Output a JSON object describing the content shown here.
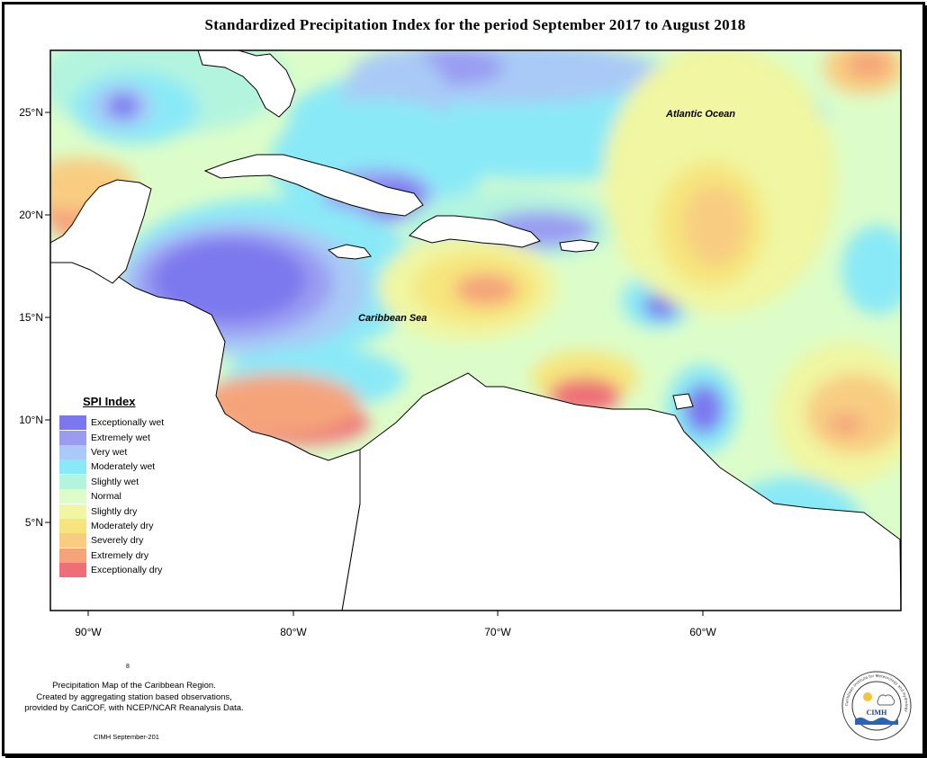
{
  "title": "Standardized Precipitation Index for the period September 2017 to August 2018",
  "map": {
    "labels": {
      "atlantic": "Atlantic Ocean",
      "caribbean": "Caribbean Sea"
    },
    "lat_ticks": [
      "25°N",
      "20°N",
      "15°N",
      "10°N",
      "5°N"
    ],
    "lon_ticks": [
      "90°W",
      "80°W",
      "70°W",
      "60°W"
    ],
    "colors": {
      "exceptionally_wet": "#7b78ee",
      "extremely_wet": "#9a9cf2",
      "very_wet": "#a9caf6",
      "moderately_wet": "#8ae9f7",
      "slightly_wet": "#b3f4df",
      "normal": "#dcfdc9",
      "slightly_dry": "#f0f6a1",
      "moderately_dry": "#f6e57d",
      "severely_dry": "#f8cd82",
      "extremely_dry": "#f5a47a",
      "exceptionally_dry": "#ee6f78",
      "land": "#ffffff"
    }
  },
  "legend": {
    "title": "SPI Index",
    "items": [
      {
        "label": "Exceptionally wet",
        "color": "#7b78ee"
      },
      {
        "label": "Extremely wet",
        "color": "#9a9cf2"
      },
      {
        "label": "Very wet",
        "color": "#a9caf6"
      },
      {
        "label": "Moderately wet",
        "color": "#8ae9f7"
      },
      {
        "label": "Slightly wet",
        "color": "#b3f4df"
      },
      {
        "label": "Normal",
        "color": "#dcfdc9"
      },
      {
        "label": "Slightly dry",
        "color": "#f0f6a1"
      },
      {
        "label": "Moderately dry",
        "color": "#f6e57d"
      },
      {
        "label": "Severely dry",
        "color": "#f8cd82"
      },
      {
        "label": "Extremely dry",
        "color": "#f5a47a"
      },
      {
        "label": "Exceptionally dry",
        "color": "#ee6f78"
      }
    ]
  },
  "page_number": "8",
  "caption": [
    "Precipitation Map of the Caribbean Region.",
    "Created by aggregating station based observations,",
    "provided by CariCOF, with NCEP/NCAR Reanalysis Data."
  ],
  "credit": "CIMH September-201",
  "logo": {
    "name": "CIMH",
    "ring_text": "Caribbean Institute for Meteorology and Hydrology"
  }
}
